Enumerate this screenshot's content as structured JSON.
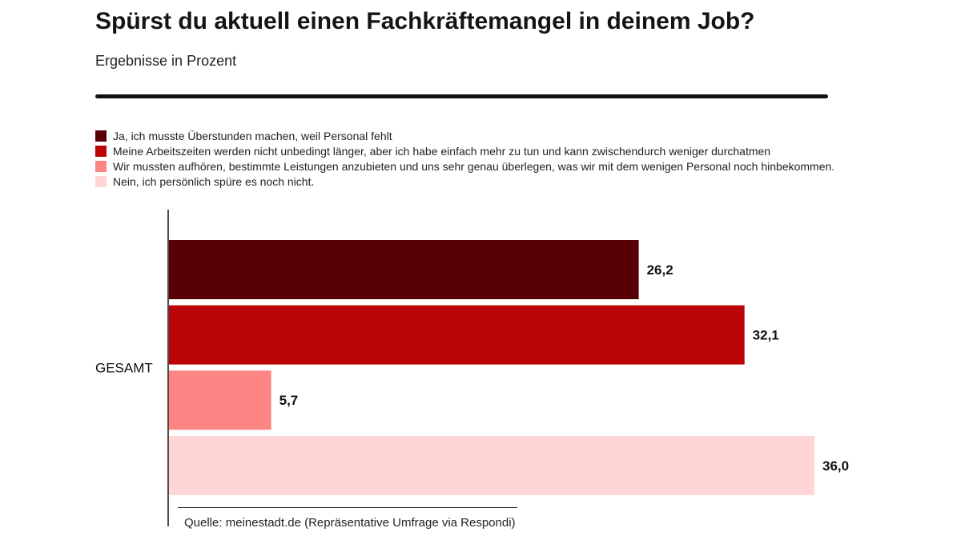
{
  "chart_data": {
    "type": "bar",
    "orientation": "horizontal",
    "title": "Spürst du aktuell einen Fachkräftemangel in deinem Job?",
    "subtitle": "Ergebnisse in Prozent",
    "categories": [
      "GESAMT"
    ],
    "series": [
      {
        "name": "Ja, ich musste Überstunden machen, weil Personal fehlt",
        "values": [
          26.2
        ],
        "label": "26,2",
        "color": "#560006"
      },
      {
        "name": "Meine Arbeitszeiten werden nicht unbedingt länger, aber ich habe einfach mehr zu tun und kann zwischendurch weniger durchatmen",
        "values": [
          32.1
        ],
        "label": "32,1",
        "color": "#bb0406"
      },
      {
        "name": "Wir mussten aufhören, bestimmte Leistungen anzubieten und uns sehr genau überlegen, was wir mit dem wenigen Personal noch hinbekommen.",
        "values": [
          5.7
        ],
        "label": "5,7",
        "color": "#fd8584"
      },
      {
        "name": "Nein, ich persönlich spüre es noch nicht.",
        "values": [
          36.0
        ],
        "label": "36,0",
        "color": "#ffd5d6"
      }
    ],
    "xlim": [
      0,
      36.0
    ],
    "grid": false,
    "legend_position": "top-left",
    "source": "Quelle: meinestadt.de (Repräsentative Umfrage via Respondi)"
  }
}
